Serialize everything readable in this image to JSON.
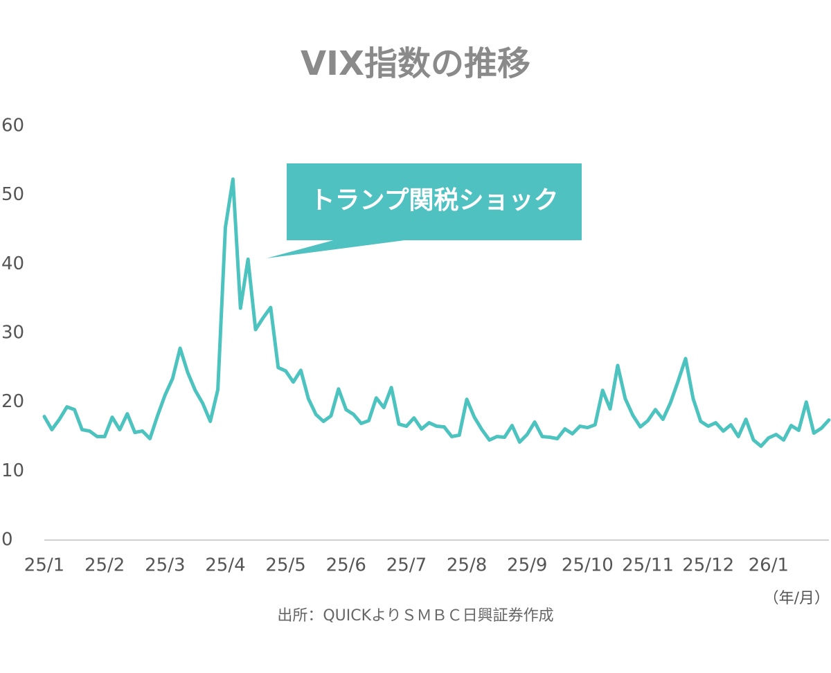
{
  "chart_data": {
    "type": "line",
    "title": "VIX指数の推移",
    "annotation": "トランプ関税ショック",
    "x_unit_label": "（年/月）",
    "source": "出所：QUICKよりＳＭＢＣ日興証券作成",
    "color": "#4dc3c0",
    "ylim": [
      0,
      60
    ],
    "yticks": [
      0,
      10,
      20,
      30,
      40,
      50,
      60
    ],
    "categories": [
      "25/1",
      null,
      null,
      null,
      null,
      null,
      null,
      null,
      "25/2",
      null,
      null,
      null,
      null,
      null,
      null,
      null,
      "25/3",
      null,
      null,
      null,
      null,
      null,
      null,
      null,
      "25/4",
      null,
      null,
      null,
      null,
      null,
      null,
      null,
      "25/5",
      null,
      null,
      null,
      null,
      null,
      null,
      null,
      "25/6",
      null,
      null,
      null,
      null,
      null,
      null,
      null,
      "25/7",
      null,
      null,
      null,
      null,
      null,
      null,
      null,
      "25/8",
      null,
      null,
      null,
      null,
      null,
      null,
      null,
      "25/9",
      null,
      null,
      null,
      null,
      null,
      null,
      null,
      "25/10",
      null,
      null,
      null,
      null,
      null,
      null,
      null,
      "25/11",
      null,
      null,
      null,
      null,
      null,
      null,
      null,
      "25/12",
      null,
      null,
      null,
      null,
      null,
      null,
      null,
      "26/1",
      null,
      null,
      null,
      null,
      null,
      null,
      null,
      null
    ],
    "values": [
      17.9,
      16.0,
      17.5,
      19.3,
      18.9,
      16.0,
      15.8,
      15.0,
      15.0,
      17.8,
      16.0,
      18.3,
      15.6,
      15.8,
      14.7,
      18.0,
      21.0,
      23.4,
      27.8,
      24.3,
      21.7,
      19.8,
      17.2,
      21.8,
      45.3,
      52.3,
      33.6,
      40.7,
      30.5,
      32.2,
      33.7,
      25.0,
      24.5,
      22.9,
      24.6,
      20.5,
      18.2,
      17.2,
      18.0,
      21.9,
      18.9,
      18.2,
      16.9,
      17.3,
      20.6,
      19.2,
      22.1,
      16.8,
      16.5,
      17.7,
      16.1,
      17.0,
      16.5,
      16.4,
      15.0,
      15.2,
      20.4,
      17.8,
      16.0,
      14.5,
      15.0,
      14.9,
      16.6,
      14.2,
      15.3,
      17.1,
      15.0,
      14.9,
      14.7,
      16.1,
      15.4,
      16.5,
      16.3,
      16.7,
      21.7,
      19.0,
      25.3,
      20.5,
      18.1,
      16.4,
      17.3,
      18.9,
      17.5,
      19.9,
      23.0,
      26.3,
      20.5,
      17.2,
      16.5,
      17.0,
      15.8,
      16.7,
      15.0,
      17.5,
      14.5,
      13.6,
      14.8,
      15.3,
      14.5,
      16.6,
      15.9,
      20.0,
      15.5,
      16.2,
      17.4
    ]
  }
}
